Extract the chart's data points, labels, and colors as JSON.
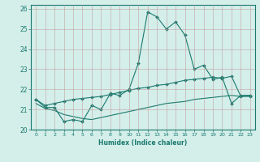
{
  "xlabel": "Humidex (Indice chaleur)",
  "xlim": [
    -0.5,
    23.5
  ],
  "ylim": [
    20,
    26.2
  ],
  "yticks": [
    20,
    21,
    22,
    23,
    24,
    25,
    26
  ],
  "xticks": [
    0,
    1,
    2,
    3,
    4,
    5,
    6,
    7,
    8,
    9,
    10,
    11,
    12,
    13,
    14,
    15,
    16,
    17,
    18,
    19,
    20,
    21,
    22,
    23
  ],
  "bg_color": "#d4eeea",
  "grid_color": "#c09090",
  "line_color": "#1a7a6e",
  "line1_x": [
    0,
    1,
    2,
    3,
    4,
    5,
    6,
    7,
    8,
    9,
    10,
    11,
    12,
    13,
    14,
    15,
    16,
    17,
    18,
    19,
    20,
    21,
    22,
    23
  ],
  "line1_y": [
    21.5,
    21.1,
    21.1,
    20.4,
    20.5,
    20.4,
    21.2,
    21.0,
    21.8,
    21.7,
    22.0,
    23.3,
    25.85,
    25.6,
    25.0,
    25.35,
    24.7,
    23.0,
    23.2,
    22.5,
    22.6,
    21.3,
    21.7,
    21.7
  ],
  "line2_x": [
    0,
    1,
    2,
    3,
    4,
    5,
    6,
    7,
    8,
    9,
    10,
    11,
    12,
    13,
    14,
    15,
    16,
    17,
    18,
    19,
    20,
    21,
    22,
    23
  ],
  "line2_y": [
    21.5,
    21.2,
    21.3,
    21.4,
    21.5,
    21.55,
    21.6,
    21.65,
    21.75,
    21.85,
    21.95,
    22.05,
    22.1,
    22.2,
    22.25,
    22.35,
    22.45,
    22.5,
    22.55,
    22.6,
    22.55,
    22.65,
    21.65,
    21.65
  ],
  "line3_x": [
    0,
    1,
    2,
    3,
    4,
    5,
    6,
    7,
    8,
    9,
    10,
    11,
    12,
    13,
    14,
    15,
    16,
    17,
    18,
    19,
    20,
    21,
    22,
    23
  ],
  "line3_y": [
    21.3,
    21.05,
    20.95,
    20.75,
    20.65,
    20.55,
    20.5,
    20.6,
    20.7,
    20.8,
    20.9,
    21.0,
    21.1,
    21.2,
    21.3,
    21.35,
    21.4,
    21.5,
    21.55,
    21.6,
    21.65,
    21.7,
    21.65,
    21.7
  ]
}
